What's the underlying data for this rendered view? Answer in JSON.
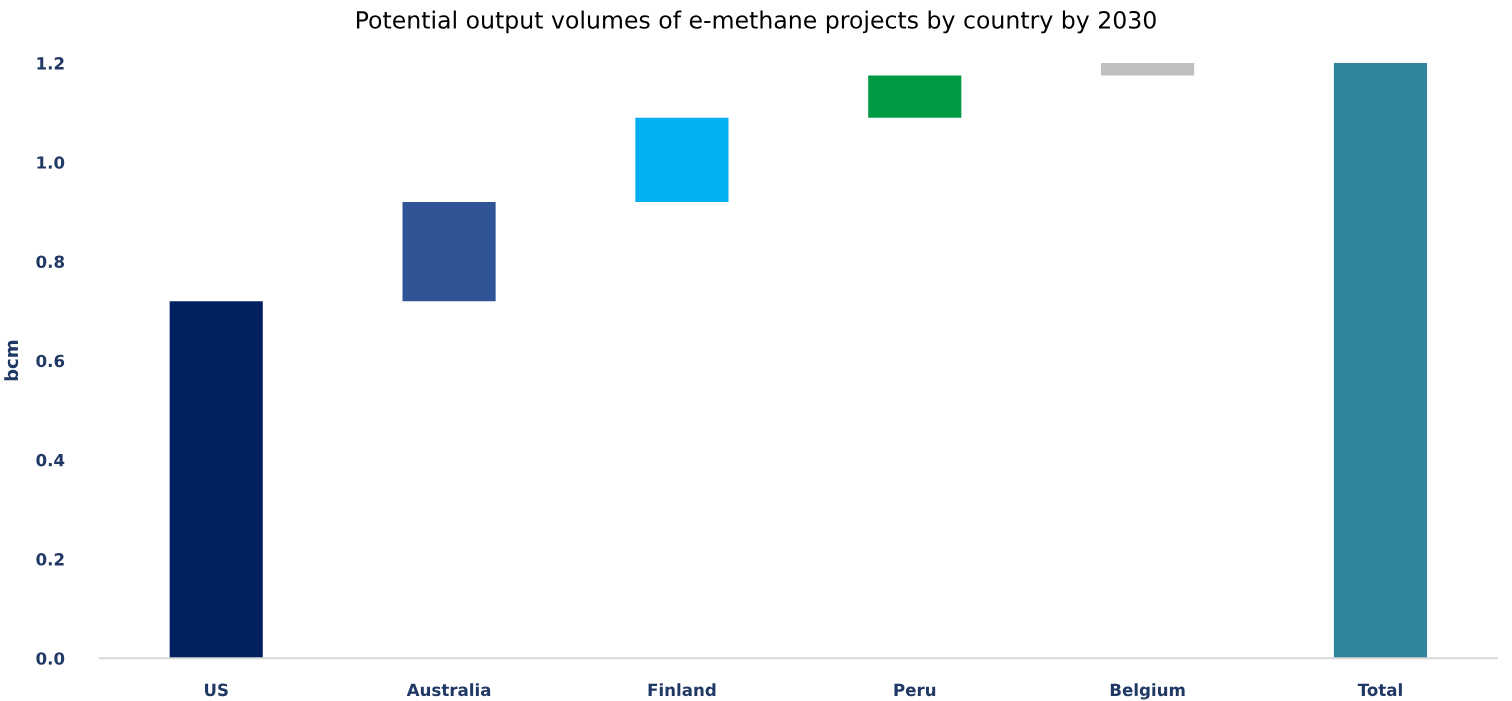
{
  "chart_data": {
    "type": "bar",
    "title": "Potential output volumes of e-methane projects by country by 2030",
    "ylabel": "bcm",
    "categories": [
      "US",
      "Australia",
      "Finland",
      "Peru",
      "Belgium",
      "Total"
    ],
    "values": [
      0.72,
      0.2,
      0.17,
      0.085,
      0.025,
      1.2
    ],
    "base": [
      0,
      0.72,
      0.92,
      1.09,
      1.175,
      0
    ],
    "colors": [
      "#002060",
      "#2f5597",
      "#00b0f0",
      "#009a44",
      "#bfbfbf",
      "#31859c"
    ],
    "ylim": [
      0,
      1.2
    ],
    "yticks": [
      {
        "value": 0,
        "label": "0.0"
      },
      {
        "value": 0.2,
        "label": "0.2"
      },
      {
        "value": 0.4,
        "label": "0.4"
      },
      {
        "value": 0.6,
        "label": "0.6"
      },
      {
        "value": 0.8,
        "label": "0.8"
      },
      {
        "value": 1.0,
        "label": "1.0"
      },
      {
        "value": 1.2,
        "label": "1.2"
      }
    ],
    "grid": false,
    "legend": false
  }
}
